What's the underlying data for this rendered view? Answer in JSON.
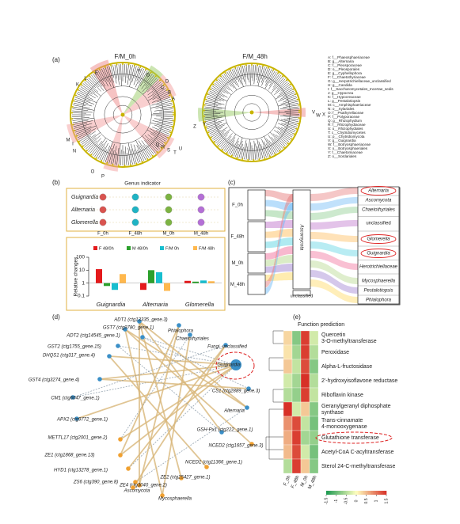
{
  "panel_labels": [
    "(a)",
    "(b)",
    "(c)",
    "(d)",
    "(e)"
  ],
  "cladograms": [
    {
      "title": "F/M_0h",
      "labels": [
        "K",
        "L",
        "E",
        "F",
        "G",
        "C",
        "D",
        "B",
        "A",
        "M",
        "I",
        "N",
        "O",
        "P",
        "Q",
        "R",
        "S",
        "T",
        "U"
      ]
    },
    {
      "title": "F/M_48h",
      "labels": [
        "Z",
        "Y",
        "V",
        "W",
        "X"
      ]
    }
  ],
  "cladogram_legend": [
    "A: f__Phaeosphaeriaceae",
    "B: g__Alternaria",
    "C: f__Pleosporaceae",
    "D: o__Pleosporales",
    "E: g__Cyphellophora",
    "F: f__Chaetothyriaceae",
    "G: g__Herpotrichiellaceae_unclassified",
    "H: g__Candida",
    "I: f__Saccharomycetales_Incertae_sedis",
    "J: g__Hypocrea",
    "K: f__Hypocreaceae",
    "L: g__Pestalotiopsis",
    "M: c__Amphisphaeriaceae",
    "N: o__Xylariales",
    "O: f__Psathyrellaceae",
    "P: f__Polyporaceae",
    "Q: g__Rhizophydium",
    "R: f__Rhizophydiaceae",
    "S: o__Rhizophydiales",
    "T: c__Chytridiomycetes",
    "U: p__Chytridiomycota",
    "V: g__Guignardia",
    "W: f__Botryosphaeriaceae",
    "X: o__Botryosphaeriales",
    "Y: f__Chaetomiaceae",
    "Z: o__Sordariales"
  ],
  "genus_indicator": {
    "title": "Genus indicator",
    "genera": [
      "Guignardia",
      "Alternaria",
      "Glomerella"
    ],
    "groups": [
      "F_0h",
      "F_48h",
      "M_0h",
      "M_48h"
    ],
    "colors": [
      "#d9534f",
      "#1fb3c4",
      "#7cb342",
      "#b46fd6"
    ]
  },
  "chart_data": [
    {
      "type": "bar",
      "log": true,
      "y_label": "Relative changes",
      "categories": [
        "Guignardia",
        "Alternaria",
        "Glomerella"
      ],
      "series": [
        {
          "name": "F 48/0h",
          "color": "#e41a1c",
          "values": [
            12,
            0.3,
            1.5
          ]
        },
        {
          "name": "M 48/0h",
          "color": "#2ca02c",
          "values": [
            0.6,
            10,
            1.3
          ]
        },
        {
          "name": "F/M 0h",
          "color": "#17becf",
          "values": [
            0.3,
            7,
            1.6
          ]
        },
        {
          "name": "F/M 48h",
          "color": "#ffb84d",
          "values": [
            5,
            0.25,
            1.4
          ]
        }
      ],
      "ylim": [
        0.1,
        100
      ],
      "yticks": [
        0.1,
        1,
        10,
        100
      ]
    },
    {
      "type": "heatmap",
      "title": "Function prediction",
      "x": [
        "F_0h",
        "F_48h",
        "M_0h",
        "M_48h"
      ],
      "rows": [
        "Quercetin 3-O-methyltransferase",
        "Peroxidase",
        "Alpha-L-fructosidase",
        "2'-hydroxyisoflavone reductase",
        "Riboflavin kinase",
        "Geranylgeranyl diphosphate synthase",
        "Trans-cinnamate 4-monooxygenase",
        "Glutathione transferase",
        "Acetyl-CoA C-acyltransferase",
        "Sterol 24-C-methyltransferase"
      ],
      "values": [
        [
          0.3,
          -0.8,
          1.4,
          -0.3
        ],
        [
          0.2,
          -0.6,
          1.4,
          -0.5
        ],
        [
          0.4,
          -0.4,
          1.3,
          -0.8
        ],
        [
          -0.3,
          -0.6,
          1.5,
          -0.5
        ],
        [
          -0.5,
          -0.7,
          1.4,
          -0.4
        ],
        [
          1.5,
          -0.3,
          0.4,
          -0.8
        ],
        [
          0.8,
          1.3,
          -0.4,
          -0.9
        ],
        [
          0.6,
          1.4,
          -0.6,
          -0.7
        ],
        [
          0.5,
          1.3,
          -0.3,
          -0.9
        ],
        [
          -0.5,
          1.4,
          0.4,
          -0.8
        ]
      ],
      "colormap": [
        "#1a9850",
        "#ffffbf",
        "#d73027"
      ],
      "clim": [
        -1.5,
        1.5
      ],
      "cticks": [
        -1.5,
        -1,
        -0.5,
        0,
        0.5,
        1,
        1.5
      ]
    }
  ],
  "alluvial": {
    "samples": [
      "F_0h",
      "F_48h",
      "M_0h",
      "M_48h"
    ],
    "phyla": [
      "Ascomycota",
      "unclassified"
    ],
    "genera": [
      "Alternaria",
      "Ascomycota",
      "Chaetothyriales",
      "unclassified",
      "Glomerella",
      "Guignardia",
      "Herotrichiellaceae",
      "Mycosphaerella",
      "Pestalotiopsis",
      "Phialophora"
    ]
  },
  "network": {
    "nodes": [
      "ADT1 (ctg13335_gene.3)",
      "GST7 (ctg9780_gene.1)",
      "Phialophora",
      "ADT2 (ctg14545_gene.1)",
      "Chaetothyriales",
      "GST2 (ctg1755_gene.15)",
      "Fungi_unclassified",
      "DHQS1 (ctg317_gene.4)",
      "Guignardia",
      "GST4 (ctg3274_gene.4)",
      "CS1 (ctg2889_gene.3)",
      "CM1 (ctg6047_gene.1)",
      "Alternaria",
      "APX2 (ctg9772_gene.1)",
      "GSH-Px1 (ctg222_gene.1)",
      "METTL17 (ctg2001_gene.2)",
      "NCED2 (ctg1657_gene.3)",
      "ZE1 (ctg1868_gene.13)",
      "NCED1 (ctg11366_gene.1)",
      "HYD1 (ctg13278_gene.1)",
      "ZE2 (ctg25427_gene.1)",
      "ZS6 (ctg390_gene.8)",
      "ZE4 (ctg3040_gene.2)",
      "Ascomycota",
      "Mycosphaerella"
    ]
  }
}
